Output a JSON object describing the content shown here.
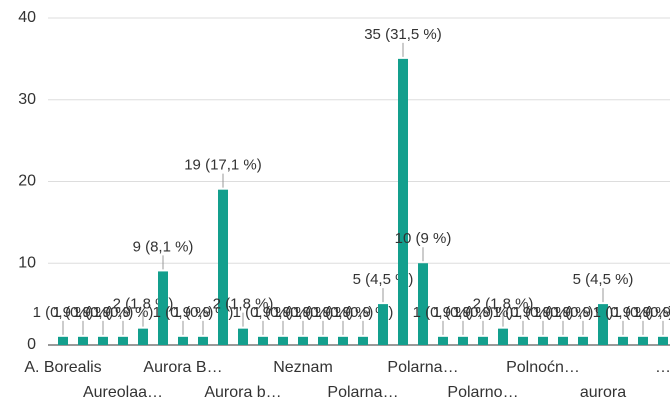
{
  "chart_data": {
    "type": "bar",
    "categories": [
      "A. Borealis",
      null,
      null,
      "Aureolaa…",
      null,
      null,
      "Aurora B…",
      null,
      null,
      "Aurora b…",
      null,
      null,
      "Neznam",
      null,
      null,
      "Polarna…",
      null,
      null,
      "Polarna…",
      null,
      null,
      "Polarno…",
      null,
      null,
      "Polnoćn…",
      null,
      null,
      "aurora",
      null,
      null,
      "…"
    ],
    "values": [
      1,
      1,
      1,
      1,
      2,
      9,
      1,
      1,
      19,
      2,
      1,
      1,
      1,
      1,
      1,
      1,
      5,
      35,
      10,
      1,
      1,
      1,
      2,
      1,
      1,
      1,
      1,
      5,
      1,
      1,
      1
    ],
    "value_labels": [
      "1 (0,9 %)",
      "1 (0,9 %)",
      "1 (0,9 %)",
      "1 (0,9 %)",
      "2 (1,8 %)",
      "9 (8,1 %)",
      "1 (0,9 %)",
      "1 (0,9 %)",
      "19 (17,1 %)",
      "2 (1,8 %)",
      "1 (0,9 %)",
      "1 (0,9 %)",
      "1 (0,9 %)",
      "1 (0,9 %)",
      "1 (0,9 %)",
      "1 (0,9 %)",
      "5 (4,5 %)",
      "35 (31,5 %)",
      "10 (9 %)",
      "1 (0,9 %)",
      "1 (0,9 %)",
      "1 (0,9 %)",
      "2 (1,8 %)",
      "1 (0,9 %)",
      "1 (0,9 %)",
      "1 (0,9 %)",
      "1 (0,9 %)",
      "5 (4,5 %)",
      "1 (0,9 %)",
      "1 (0,9 %)",
      "1 (0,9 %)"
    ],
    "color": "#139f8d",
    "ylim": [
      0,
      40
    ],
    "yticks": [
      0,
      10,
      20,
      30,
      40
    ],
    "grid": true
  }
}
